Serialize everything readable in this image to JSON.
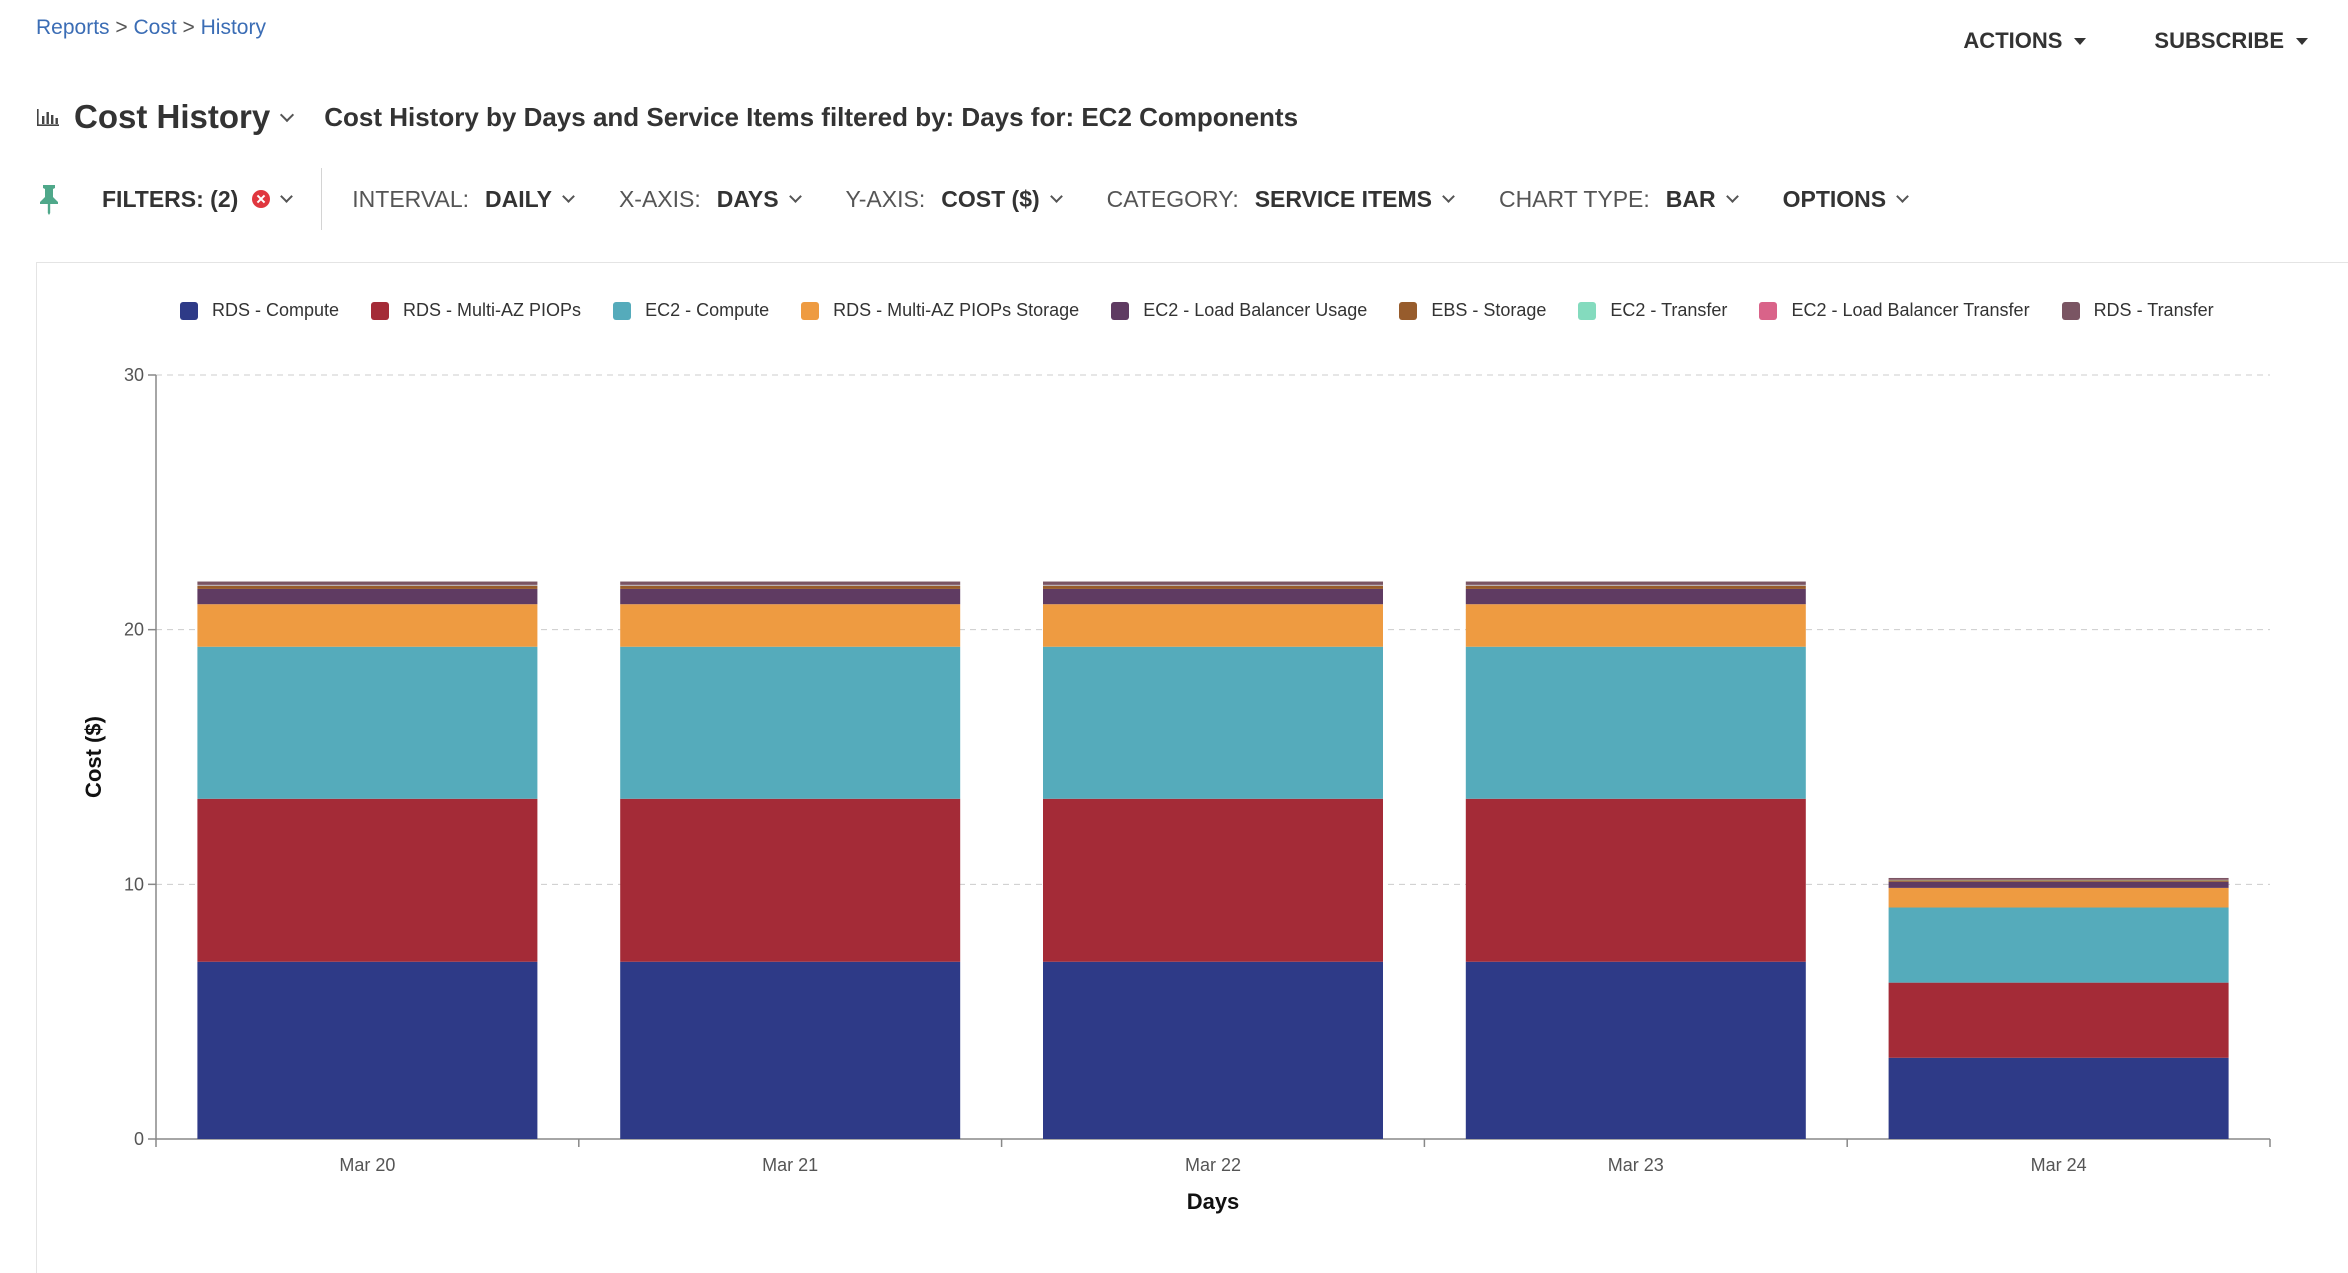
{
  "breadcrumb": {
    "items": [
      "Reports",
      "Cost",
      "History"
    ],
    "separator": ">"
  },
  "top_actions": {
    "actions_label": "ACTIONS",
    "subscribe_label": "SUBSCRIBE"
  },
  "header": {
    "title": "Cost History",
    "subtitle": "Cost History by Days and Service Items filtered by: Days for: EC2 Components"
  },
  "toolbar": {
    "filters_label": "FILTERS: (2)",
    "interval_label": "INTERVAL:",
    "interval_value": "DAILY",
    "xaxis_label": "X-AXIS:",
    "xaxis_value": "DAYS",
    "yaxis_label": "Y-AXIS:",
    "yaxis_value": "COST ($)",
    "category_label": "CATEGORY:",
    "category_value": "SERVICE ITEMS",
    "chart_type_label": "CHART TYPE:",
    "chart_type_value": "BAR",
    "options_label": "OPTIONS"
  },
  "icons": {
    "title": "bar-chart-icon",
    "pin": "pin-icon",
    "clear": "clear-filter-icon"
  },
  "colors": {
    "link": "#3b6db5",
    "grid": "#cccccc",
    "series": [
      "#2e3a87",
      "#a42b37",
      "#55abbb",
      "#ee9b41",
      "#5f3b62",
      "#975c2c",
      "#84dbbe",
      "#d96389",
      "#7a5563"
    ]
  },
  "chart_data": {
    "type": "bar",
    "stacked": true,
    "categories": [
      "Mar 20",
      "Mar 21",
      "Mar 22",
      "Mar 23",
      "Mar 24"
    ],
    "xlabel": "Days",
    "ylabel": "Cost ($)",
    "ylim": [
      0,
      30
    ],
    "yticks": [
      0,
      10,
      20,
      30
    ],
    "grid": true,
    "legend_position": "top",
    "series": [
      {
        "name": "RDS - Compute",
        "values": [
          6.96,
          6.96,
          6.96,
          6.96,
          3.19
        ]
      },
      {
        "name": "RDS - Multi-AZ PIOPs",
        "values": [
          6.4,
          6.4,
          6.4,
          6.4,
          2.95
        ]
      },
      {
        "name": "EC2 - Compute",
        "values": [
          5.97,
          5.97,
          5.97,
          5.97,
          2.95
        ]
      },
      {
        "name": "RDS - Multi-AZ PIOPs Storage",
        "values": [
          1.67,
          1.67,
          1.67,
          1.67,
          0.77
        ]
      },
      {
        "name": "EC2 - Load Balancer Usage",
        "values": [
          0.6,
          0.6,
          0.6,
          0.6,
          0.24
        ]
      },
      {
        "name": "EBS - Storage",
        "values": [
          0.12,
          0.12,
          0.12,
          0.12,
          0.06
        ]
      },
      {
        "name": "EC2 - Transfer",
        "values": [
          0.02,
          0.02,
          0.02,
          0.02,
          0.01
        ]
      },
      {
        "name": "EC2 - Load Balancer Transfer",
        "values": [
          0.02,
          0.02,
          0.02,
          0.02,
          0.01
        ]
      },
      {
        "name": "RDS - Transfer",
        "values": [
          0.13,
          0.13,
          0.13,
          0.13,
          0.07
        ]
      }
    ]
  }
}
